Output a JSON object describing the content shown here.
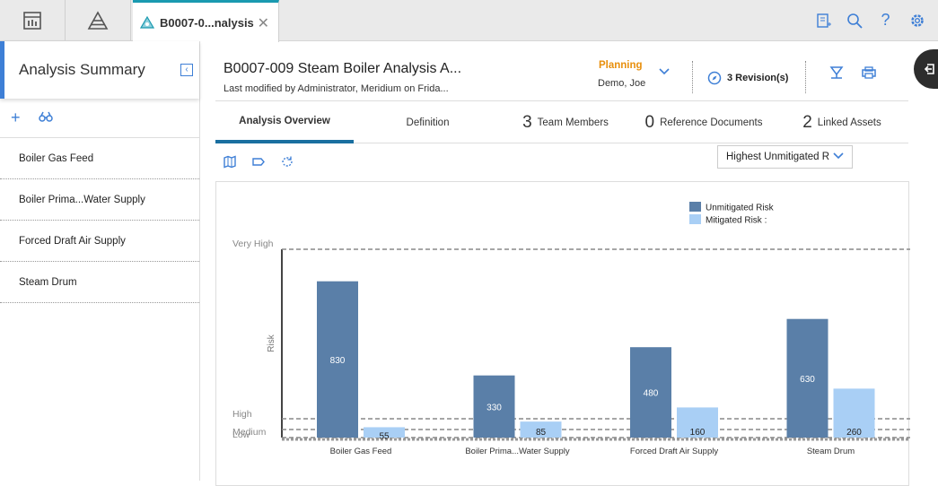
{
  "topbar": {
    "active_tab_title": "B0007-0...nalysis"
  },
  "left_panel": {
    "title": "Analysis Summary",
    "items": [
      "Boiler Gas Feed",
      "Boiler Prima...Water Supply",
      "Forced Draft Air Supply",
      "Steam Drum"
    ]
  },
  "header": {
    "title": "B0007-009 Steam Boiler Analysis A...",
    "subtitle": "Last modified by Administrator, Meridium on Frida...",
    "state": "Planning",
    "state_user": "Demo, Joe",
    "revisions": "3 Revision(s)",
    "state_color": "#e88f0c"
  },
  "subtabs": [
    {
      "count": "",
      "label": "Analysis Overview",
      "active": true
    },
    {
      "count": "",
      "label": "Definition",
      "active": false
    },
    {
      "count": "3",
      "label": "Team Members",
      "active": false
    },
    {
      "count": "0",
      "label": "Reference Documents",
      "active": false
    },
    {
      "count": "2",
      "label": "Linked Assets",
      "active": false
    }
  ],
  "dropdown": {
    "selected": "Highest Unmitigated R"
  },
  "chart_data": {
    "type": "bar",
    "categories": [
      "Boiler Gas Feed",
      "Boiler Prima...Water Supply",
      "Forced Draft Air Supply",
      "Steam Drum"
    ],
    "series": [
      {
        "name": "Unmitigated Risk",
        "values": [
          830,
          330,
          480,
          630
        ],
        "color": "#5a7fa8"
      },
      {
        "name": "Mitigated Risk :",
        "values": [
          55,
          85,
          160,
          260
        ],
        "color": "#a9cff5"
      }
    ],
    "ylabel": "Risk",
    "ylim": [
      0,
      1000
    ],
    "reference_lines": [
      {
        "label": "Very High",
        "value": 1000
      },
      {
        "label": "High",
        "value": 100
      },
      {
        "label": "Medium",
        "value": 10
      },
      {
        "label": "Low",
        "value": 0
      }
    ],
    "legend": "top-right"
  }
}
